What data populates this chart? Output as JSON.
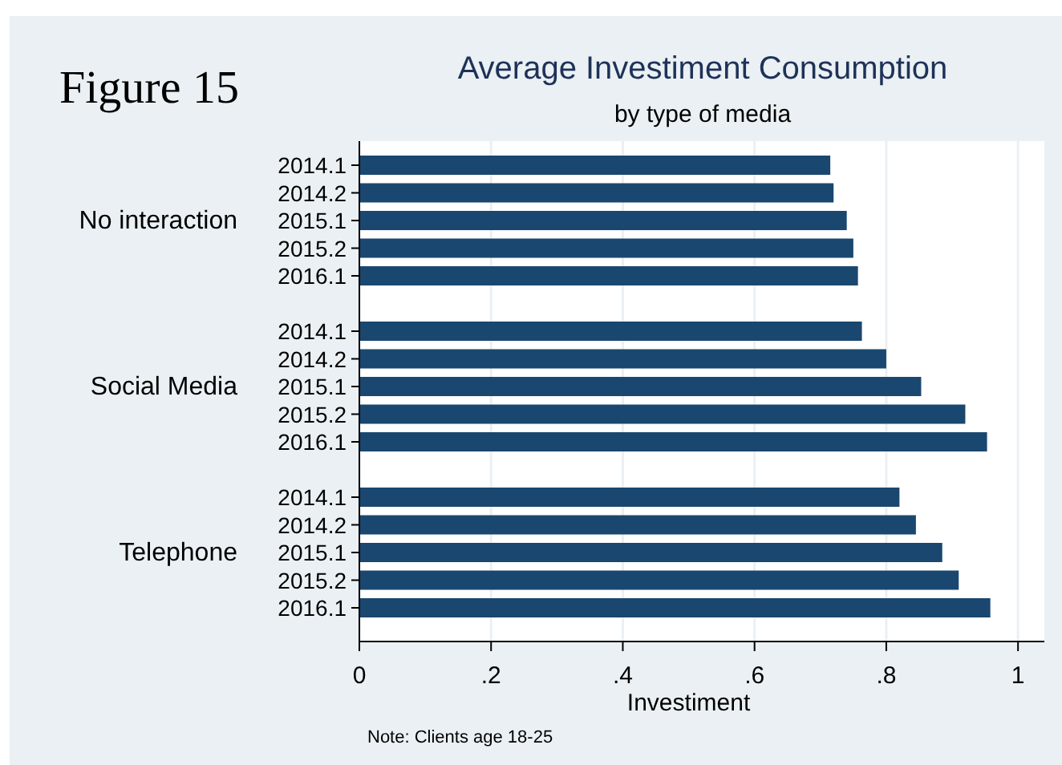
{
  "chart_data": {
    "type": "bar",
    "orientation": "horizontal",
    "title": "Average Investiment Consumption",
    "subtitle": "by type of media",
    "xlabel": "Investiment",
    "categories": [
      "2014.1",
      "2014.2",
      "2015.1",
      "2015.2",
      "2016.1",
      null,
      "2014.1",
      "2014.2",
      "2015.1",
      "2015.2",
      "2016.1",
      null,
      "2014.1",
      "2014.2",
      "2015.1",
      "2015.2",
      "2016.1"
    ],
    "values": [
      0.715,
      0.72,
      0.74,
      0.75,
      0.757,
      null,
      0.763,
      0.8,
      0.853,
      0.92,
      0.953,
      null,
      0.82,
      0.845,
      0.885,
      0.91,
      0.958
    ],
    "color": "#1a476f",
    "xlim": [
      0,
      1.04
    ],
    "xticks": [
      0,
      {
        "value": 0.2,
        "label": ".2"
      },
      {
        "value": 0.4,
        "label": ".4"
      },
      {
        "value": 0.6,
        "label": ".6"
      },
      {
        "value": 0.8,
        "label": ".8"
      },
      1
    ],
    "grid": "x",
    "annotations": [
      "Figure 15",
      "No interaction",
      "Social Media",
      "Telephone",
      "Note: Clients age 18-25"
    ]
  }
}
